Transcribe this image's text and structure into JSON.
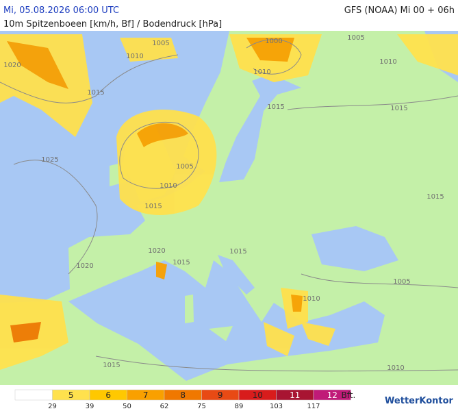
{
  "header": {
    "title": "Mi, 05.08.2026 06:00 UTC",
    "model": "GFS (NOAA) Mi 00 + 06h",
    "subtitle": "10m Spitzenboeen [km/h, Bf] / Bodendruck [hPa]"
  },
  "isobar_labels": [
    "1005",
    "1010",
    "1020",
    "1015",
    "1000",
    "1005",
    "1010",
    "1010",
    "1015",
    "1015",
    "1025",
    "1005",
    "1010",
    "1015",
    "1015",
    "1020",
    "1015",
    "1020",
    "1015",
    "1010",
    "1005",
    "1015",
    "1010"
  ],
  "legend": {
    "bft": [
      5,
      6,
      7,
      8,
      9,
      10,
      11,
      12
    ],
    "unit": "Bft.",
    "thresholds": [
      29,
      39,
      50,
      62,
      75,
      89,
      103,
      117
    ],
    "colors": [
      "#ffffff",
      "#ffe14d",
      "#ffc800",
      "#f9a000",
      "#f07800",
      "#e84a14",
      "#d81c1c",
      "#a81432",
      "#c01a78"
    ]
  },
  "brand": "WetterKontor"
}
